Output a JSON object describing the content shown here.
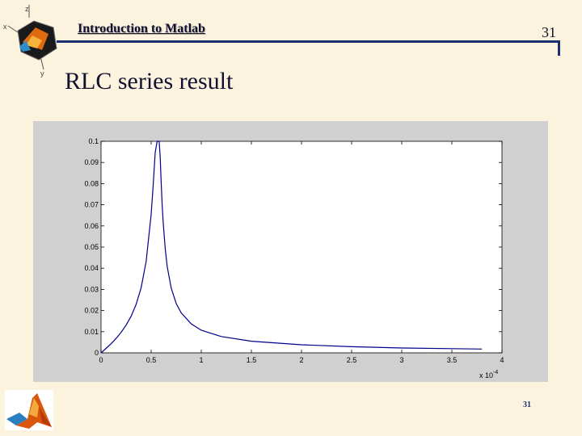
{
  "header": {
    "title": "Introduction to Matlab",
    "page_number": "31"
  },
  "slide": {
    "title": "RLC series result",
    "footer_number": "31"
  },
  "icons": {
    "corner_logo": "matlab-cube-logo",
    "bottom_logo": "matlab-membrane-logo"
  },
  "colors": {
    "background": "#fcf3de",
    "accent": "#1b2f70",
    "curve": "#00008b",
    "figure_bg": "#d0d0d0"
  },
  "chart_data": {
    "type": "line",
    "title": "",
    "xlabel": "",
    "ylabel": "",
    "x_multiplier": "x 10",
    "x_multiplier_exponent": "-4",
    "xlim": [
      0,
      4
    ],
    "ylim": [
      0,
      0.1
    ],
    "x_tick_labels": [
      "0",
      "0.5",
      "1",
      "1.5",
      "2",
      "2.5",
      "3",
      "3.5",
      "4"
    ],
    "y_tick_labels": [
      "0",
      "0.01",
      "0.02",
      "0.03",
      "0.04",
      "0.05",
      "0.06",
      "0.07",
      "0.08",
      "0.09",
      "0.1"
    ],
    "grid": false,
    "series": [
      {
        "x": [
          0.0,
          0.05,
          0.1,
          0.15,
          0.2,
          0.25,
          0.3,
          0.35,
          0.4,
          0.45,
          0.5,
          0.52,
          0.54,
          0.56,
          0.57,
          0.58,
          0.59,
          0.6,
          0.61,
          0.62,
          0.64,
          0.66,
          0.7,
          0.75,
          0.8,
          0.9,
          1.0,
          1.2,
          1.5,
          2.0,
          2.5,
          3.0,
          3.5,
          3.8
        ],
        "y": [
          0.0,
          0.0021,
          0.0043,
          0.0068,
          0.0097,
          0.0131,
          0.0173,
          0.0229,
          0.0308,
          0.0432,
          0.0655,
          0.0792,
          0.0947,
          0.1,
          0.1,
          0.1,
          0.0924,
          0.0806,
          0.07,
          0.0616,
          0.0492,
          0.0409,
          0.0306,
          0.0233,
          0.0189,
          0.0137,
          0.0107,
          0.0077,
          0.0055,
          0.0038,
          0.0029,
          0.0023,
          0.002,
          0.0018
        ]
      }
    ]
  }
}
